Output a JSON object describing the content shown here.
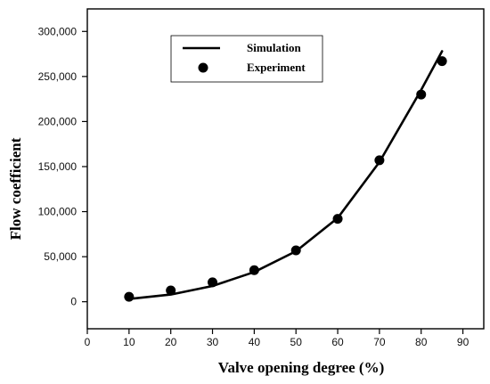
{
  "chart_data": {
    "type": "line",
    "title": "",
    "xlabel": "Valve opening degree (%)",
    "ylabel": "Flow coefficient",
    "xlim": [
      0,
      95
    ],
    "ylim": [
      -30000,
      325000
    ],
    "xticks": [
      0,
      10,
      20,
      30,
      40,
      50,
      60,
      70,
      80,
      90
    ],
    "xtick_labels": [
      "0",
      "10",
      "20",
      "30",
      "40",
      "50",
      "60",
      "70",
      "80",
      "90"
    ],
    "yticks": [
      0,
      50000,
      100000,
      150000,
      200000,
      250000,
      300000
    ],
    "ytick_labels": [
      "0",
      "50,000",
      "100,000",
      "150,000",
      "200,000",
      "250,000",
      "300,000"
    ],
    "grid": false,
    "legend_position": "top-center",
    "series": [
      {
        "name": "Simulation",
        "style": "line",
        "color": "#000000",
        "x": [
          10,
          20,
          30,
          40,
          50,
          60,
          70,
          80,
          85
        ],
        "y": [
          3000,
          8000,
          17500,
          33000,
          56000,
          93000,
          155000,
          235000,
          278000
        ]
      },
      {
        "name": "Experiment",
        "style": "scatter",
        "color": "#000000",
        "x": [
          10,
          20,
          30,
          40,
          50,
          60,
          70,
          80,
          85
        ],
        "y": [
          5500,
          12500,
          21500,
          35000,
          57000,
          92000,
          157000,
          230000,
          267000
        ]
      }
    ]
  }
}
